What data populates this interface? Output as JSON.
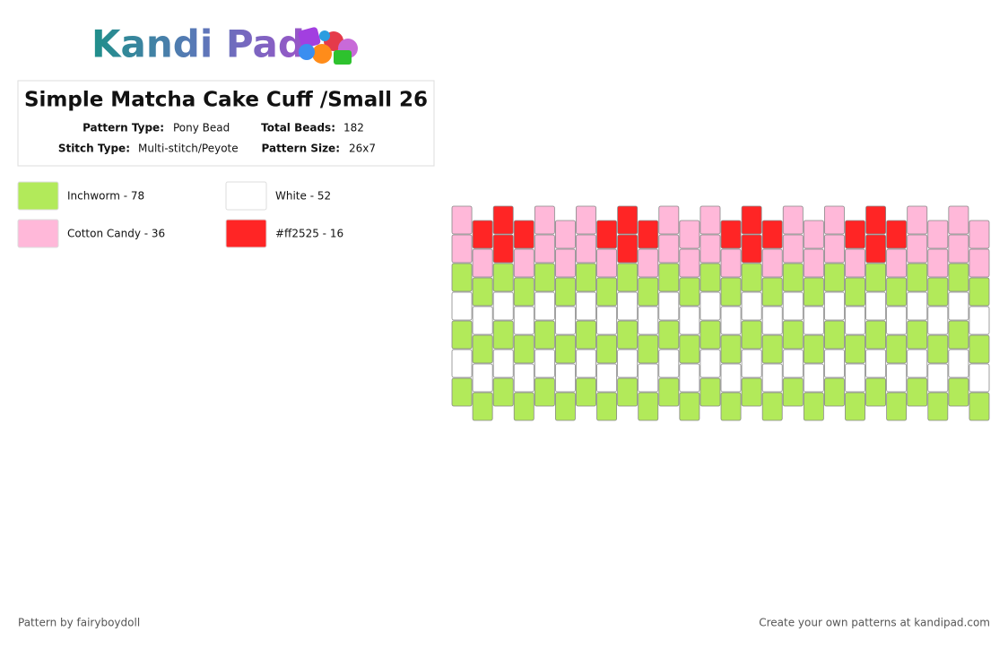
{
  "logo": "Kandi Pad",
  "header": {
    "title": "Simple Matcha Cake Cuff /Small 26",
    "fields": [
      {
        "label": "Pattern Type:",
        "value": "Pony Bead"
      },
      {
        "label": "Total Beads:",
        "value": "182"
      },
      {
        "label": "Stitch Type:",
        "value": "Multi-stitch/Peyote"
      },
      {
        "label": "Pattern Size:",
        "value": "26x7"
      }
    ]
  },
  "legend": [
    {
      "color": "#b2ea5a",
      "label": "Inchworm - 78"
    },
    {
      "color": "#ffffff",
      "label": "White - 52"
    },
    {
      "color": "#ffb8d9",
      "label": "Cotton Candy - 36"
    },
    {
      "color": "#ff2525",
      "label": "#ff2525 - 16"
    }
  ],
  "beads": [
    [
      2,
      2,
      0,
      1,
      0,
      1,
      0
    ],
    [
      3,
      2,
      0,
      1,
      0,
      1,
      0
    ],
    [
      3,
      3,
      0,
      1,
      0,
      1,
      0
    ],
    [
      3,
      2,
      0,
      1,
      0,
      1,
      0
    ],
    [
      2,
      2,
      0,
      1,
      0,
      1,
      0
    ],
    [
      2,
      2,
      0,
      1,
      0,
      1,
      0
    ],
    [
      2,
      2,
      0,
      1,
      0,
      1,
      0
    ],
    [
      3,
      2,
      0,
      1,
      0,
      1,
      0
    ],
    [
      3,
      3,
      0,
      1,
      0,
      1,
      0
    ],
    [
      3,
      2,
      0,
      1,
      0,
      1,
      0
    ],
    [
      2,
      2,
      0,
      1,
      0,
      1,
      0
    ],
    [
      2,
      2,
      0,
      1,
      0,
      1,
      0
    ],
    [
      2,
      2,
      0,
      1,
      0,
      1,
      0
    ],
    [
      3,
      2,
      0,
      1,
      0,
      1,
      0
    ],
    [
      3,
      3,
      0,
      1,
      0,
      1,
      0
    ],
    [
      3,
      2,
      0,
      1,
      0,
      1,
      0
    ],
    [
      2,
      2,
      0,
      1,
      0,
      1,
      0
    ],
    [
      2,
      2,
      0,
      1,
      0,
      1,
      0
    ],
    [
      2,
      2,
      0,
      1,
      0,
      1,
      0
    ],
    [
      3,
      2,
      0,
      1,
      0,
      1,
      0
    ],
    [
      3,
      3,
      0,
      1,
      0,
      1,
      0
    ],
    [
      3,
      2,
      0,
      1,
      0,
      1,
      0
    ],
    [
      2,
      2,
      0,
      1,
      0,
      1,
      0
    ],
    [
      2,
      2,
      0,
      1,
      0,
      1,
      0
    ],
    [
      2,
      2,
      0,
      1,
      0,
      1,
      0
    ],
    [
      2,
      2,
      0,
      1,
      0,
      1,
      0
    ]
  ],
  "footer": {
    "credit": "Pattern by fairyboydoll",
    "link": "Create your own patterns at kandipad.com"
  }
}
